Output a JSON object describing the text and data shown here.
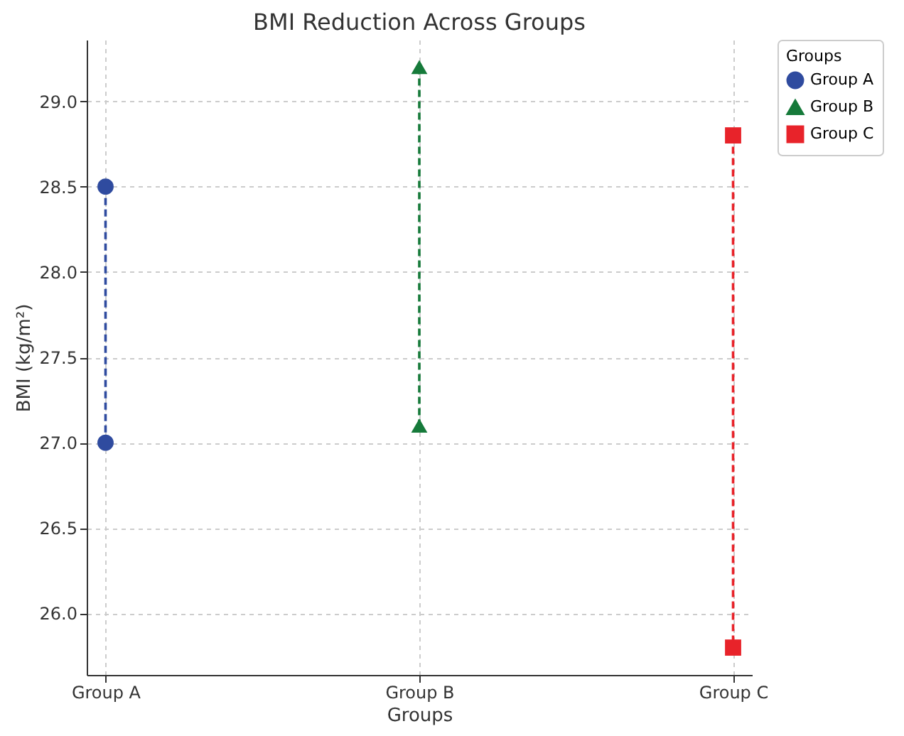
{
  "chart_data": {
    "type": "line",
    "title": "BMI Reduction Across Groups",
    "xlabel": "Groups",
    "ylabel": "BMI (kg/m²)",
    "legend_title": "Groups",
    "categories": [
      "Group A",
      "Group B",
      "Group C"
    ],
    "series": [
      {
        "name": "Group A",
        "color": "#2f4b9f",
        "x": [
          "Group A",
          "Group A"
        ],
        "values": [
          28.5,
          27.0
        ],
        "marker": "circle"
      },
      {
        "name": "Group B",
        "color": "#167a3a",
        "x": [
          "Group B",
          "Group B"
        ],
        "values": [
          29.2,
          27.1
        ],
        "marker": "triangle"
      },
      {
        "name": "Group C",
        "color": "#e8232a",
        "x": [
          "Group C",
          "Group C"
        ],
        "values": [
          28.8,
          25.8
        ],
        "marker": "square"
      }
    ],
    "ylim": [
      25.64,
      29.36
    ],
    "yticks": [
      {
        "value": 26,
        "label": "26.0"
      },
      {
        "value": 26.5,
        "label": "26.5"
      },
      {
        "value": 27,
        "label": "27.0"
      },
      {
        "value": 27.5,
        "label": "27.5"
      },
      {
        "value": 28,
        "label": "28.0"
      },
      {
        "value": 28.5,
        "label": "28.5"
      },
      {
        "value": 29,
        "label": "29.0"
      }
    ],
    "grid": true,
    "legend": "right",
    "line_style": "dashed"
  }
}
